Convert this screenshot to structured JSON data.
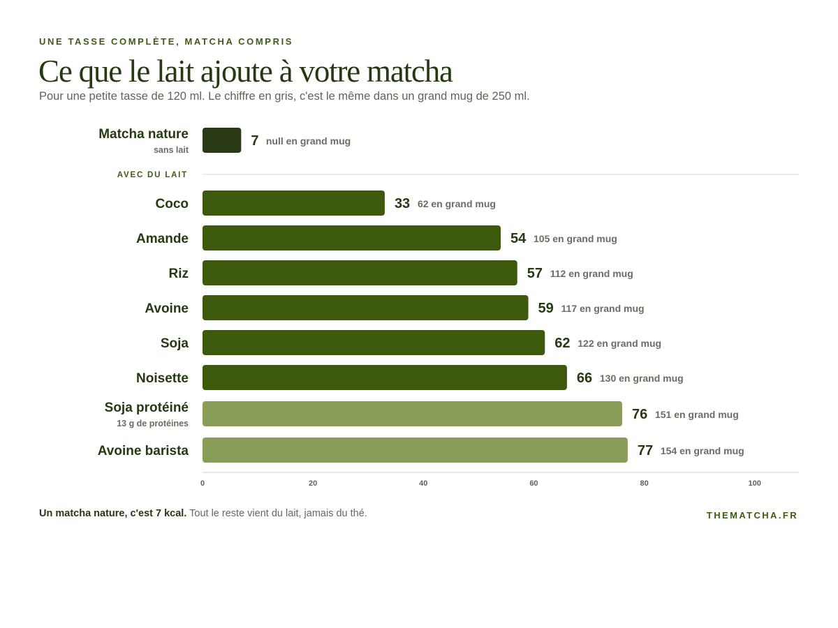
{
  "header": {
    "eyebrow": "UNE TASSE COMPLÈTE, MATCHA COMPRIS",
    "title": "Ce que le lait ajoute à votre matcha",
    "subtitle": "Pour une petite tasse de 120 ml. Le chiffre en gris, c'est le même dans un grand mug de 250 ml."
  },
  "colors": {
    "plain": "#2b3a16",
    "milk": "#3d5a0c",
    "light": "#8a9d58",
    "secondary_text": "#6a6d62"
  },
  "chart_data": {
    "type": "bar",
    "orientation": "horizontal",
    "xlim": [
      0,
      108
    ],
    "xticks": [
      0,
      20,
      40,
      60,
      80,
      100
    ],
    "grid": false,
    "group_label": "AVEC DU LAIT",
    "mug_suffix": "en grand mug",
    "items": [
      {
        "label": "Matcha nature",
        "sublabel": "sans lait",
        "value": 7,
        "mug": "null",
        "style": "plain"
      },
      {
        "label": "Coco",
        "sublabel": "",
        "value": 33,
        "mug": "62",
        "style": "milk"
      },
      {
        "label": "Amande",
        "sublabel": "",
        "value": 54,
        "mug": "105",
        "style": "milk"
      },
      {
        "label": "Riz",
        "sublabel": "",
        "value": 57,
        "mug": "112",
        "style": "milk"
      },
      {
        "label": "Avoine",
        "sublabel": "",
        "value": 59,
        "mug": "117",
        "style": "milk"
      },
      {
        "label": "Soja",
        "sublabel": "",
        "value": 62,
        "mug": "122",
        "style": "milk"
      },
      {
        "label": "Noisette",
        "sublabel": "",
        "value": 66,
        "mug": "130",
        "style": "milk"
      },
      {
        "label": "Soja protéiné",
        "sublabel": "13 g de protéines",
        "value": 76,
        "mug": "151",
        "style": "light"
      },
      {
        "label": "Avoine barista",
        "sublabel": "",
        "value": 77,
        "mug": "154",
        "style": "light"
      }
    ]
  },
  "footer": {
    "note_bold": "Un matcha nature, c'est 7 kcal.",
    "note_rest": " Tout le reste vient du lait, jamais du thé.",
    "brand": "THEMATCHA.FR"
  }
}
